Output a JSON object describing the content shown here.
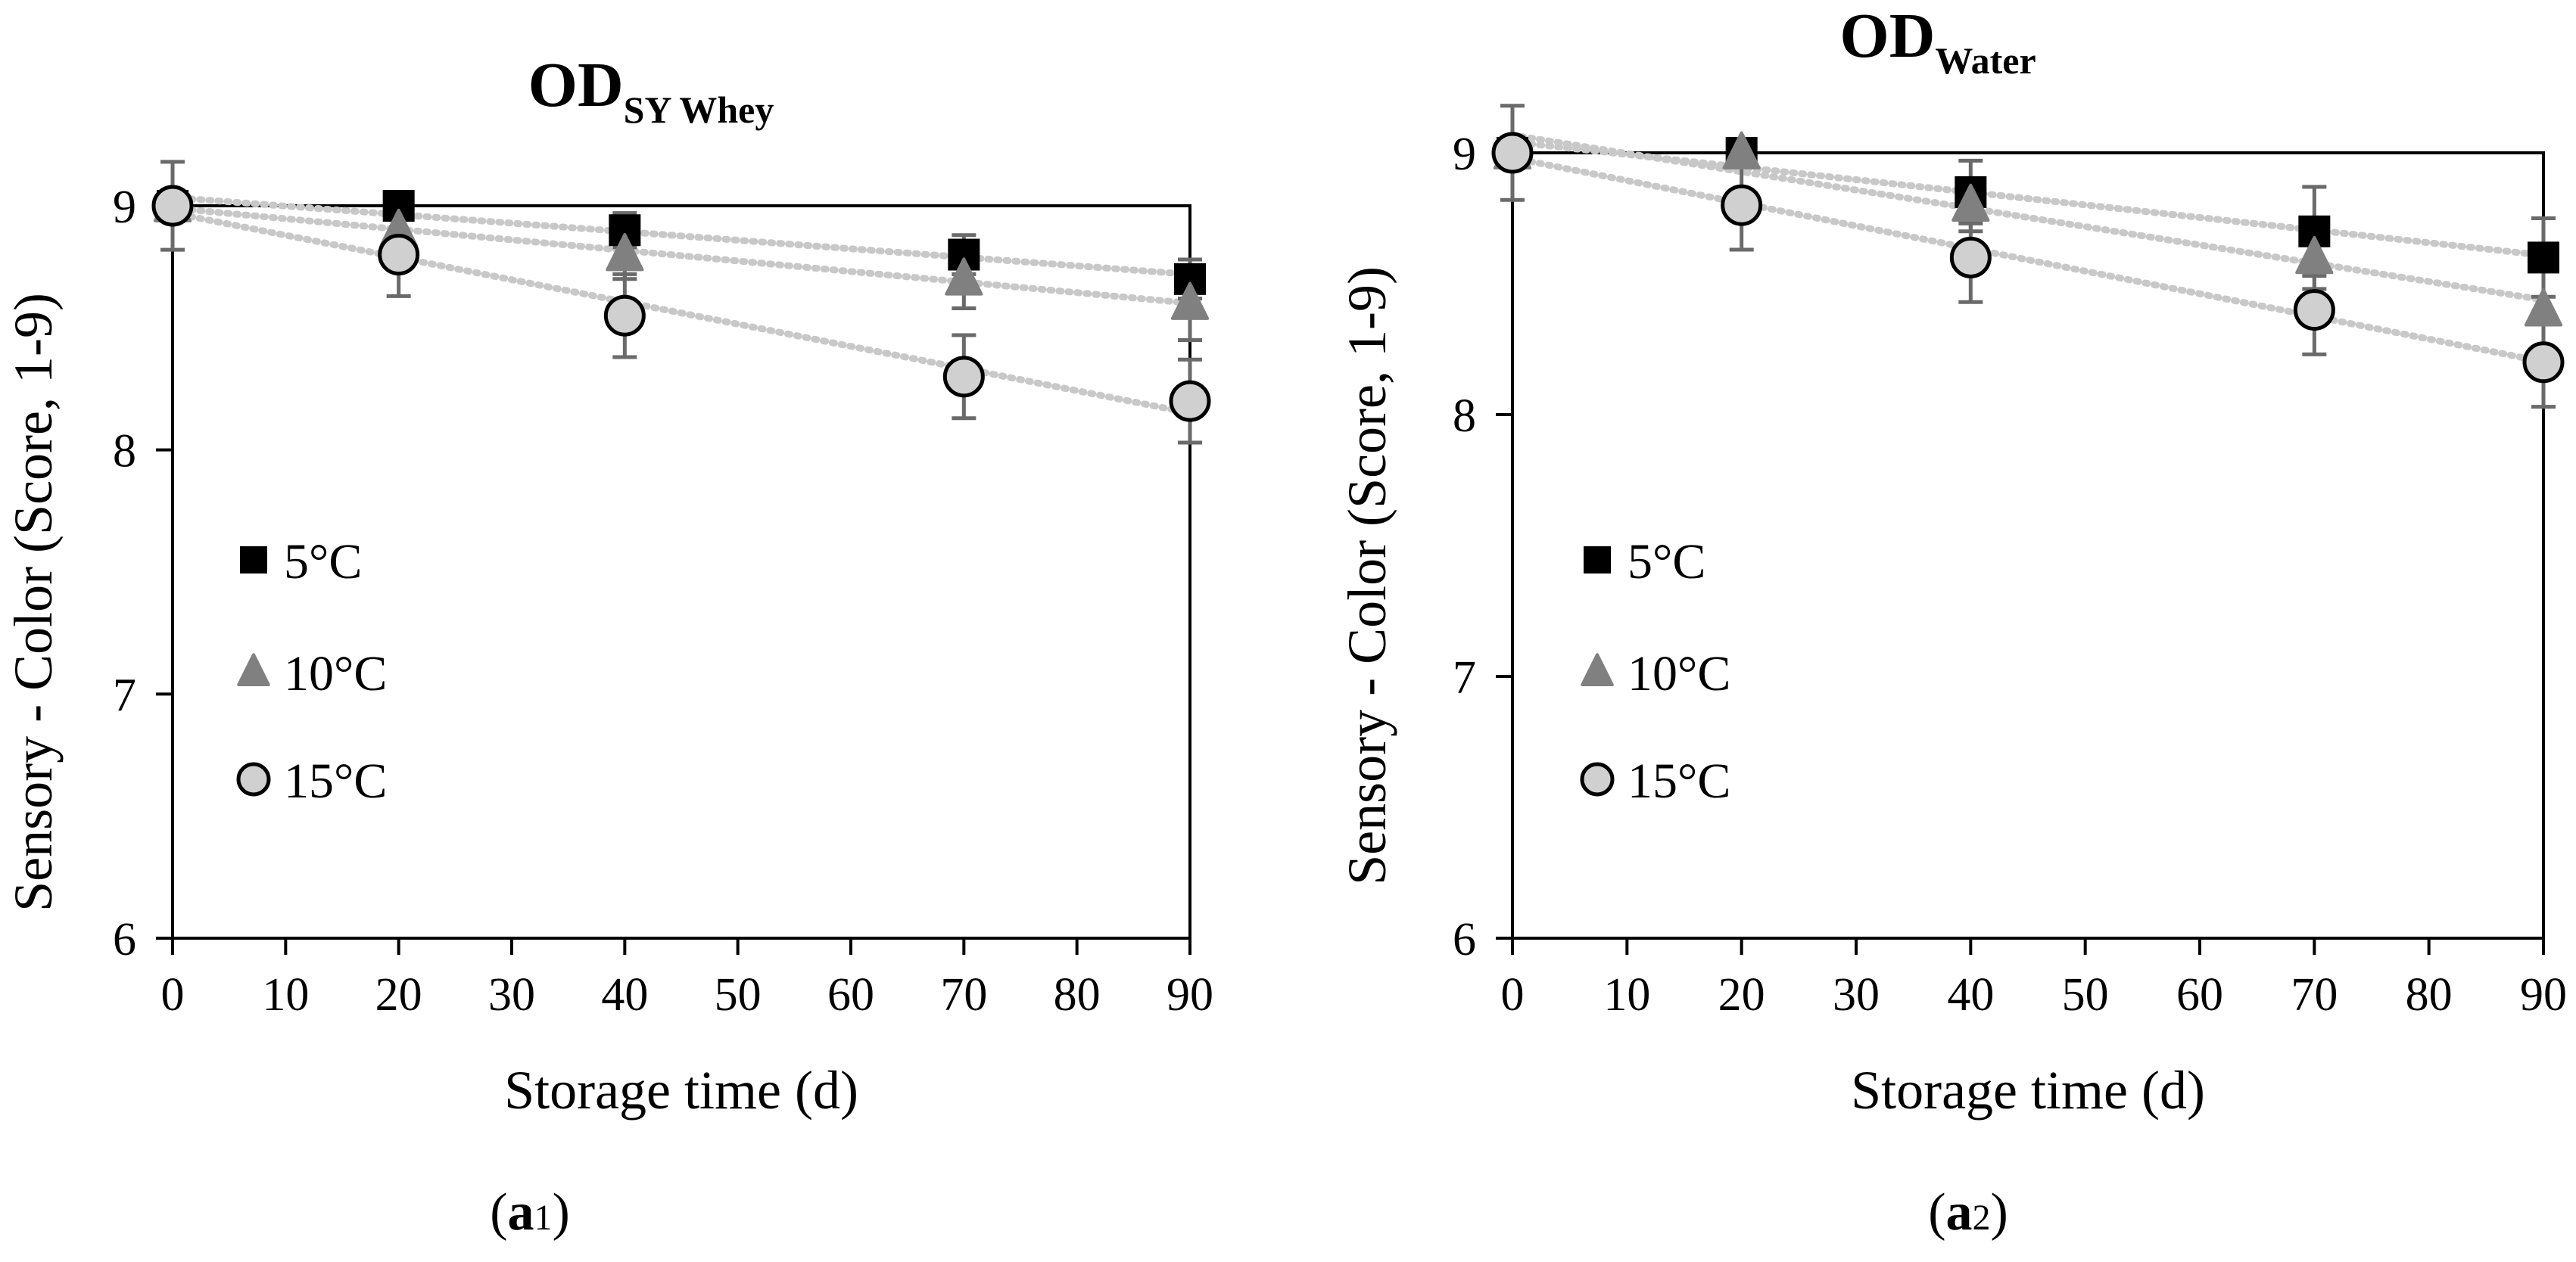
{
  "chart_data": [
    {
      "type": "scatter",
      "title": "OD",
      "title_subscript": "SY Whey",
      "xlabel": "Storage time (d)",
      "ylabel": "Sensory - Color (Score, 1-9)",
      "xlim": [
        0,
        90
      ],
      "ylim": [
        6,
        9
      ],
      "xticks": [
        "0",
        "10",
        "20",
        "30",
        "40",
        "50",
        "60",
        "70",
        "80",
        "90"
      ],
      "yticks": [
        "6",
        "7",
        "8",
        "9"
      ],
      "panel_label": "a",
      "panel_label_sub": "1",
      "legend_position": "left",
      "trendlines": "linear, dotted",
      "series": [
        {
          "name": "5°C",
          "marker": "square",
          "color": "#000000",
          "x": [
            0,
            20,
            40,
            70,
            90
          ],
          "y": [
            9.0,
            9.0,
            8.9,
            8.8,
            8.7
          ],
          "error": [
            0.0,
            0.0,
            0.07,
            0.08,
            0.08
          ]
        },
        {
          "name": "10°C",
          "marker": "triangle",
          "color": "#808080",
          "x": [
            0,
            20,
            40,
            70,
            90
          ],
          "y": [
            9.0,
            8.9,
            8.8,
            8.7,
            8.6
          ],
          "error": [
            0.0,
            0.07,
            0.1,
            0.12,
            0.15
          ]
        },
        {
          "name": "15°C",
          "marker": "circle",
          "color": "#d0d0d0",
          "x": [
            0,
            20,
            40,
            70,
            90
          ],
          "y": [
            9.0,
            8.8,
            8.55,
            8.3,
            8.2
          ],
          "error": [
            0.18,
            0.17,
            0.17,
            0.17,
            0.17
          ]
        }
      ]
    },
    {
      "type": "scatter",
      "title": "OD",
      "title_subscript": "Water",
      "xlabel": "Storage time (d)",
      "ylabel": "Sensory - Color (Score, 1-9)",
      "xlim": [
        0,
        90
      ],
      "ylim": [
        6,
        9
      ],
      "xticks": [
        "0",
        "10",
        "20",
        "30",
        "40",
        "50",
        "60",
        "70",
        "80",
        "90"
      ],
      "yticks": [
        "6",
        "7",
        "8",
        "9"
      ],
      "panel_label": "a",
      "panel_label_sub": "2",
      "legend_position": "left",
      "trendlines": "linear, dotted",
      "series": [
        {
          "name": "5°C",
          "marker": "square",
          "color": "#000000",
          "x": [
            0,
            20,
            40,
            70,
            90
          ],
          "y": [
            9.0,
            9.0,
            8.85,
            8.7,
            8.6
          ],
          "error": [
            0.0,
            0.0,
            0.12,
            0.17,
            0.15
          ]
        },
        {
          "name": "10°C",
          "marker": "triangle",
          "color": "#808080",
          "x": [
            0,
            20,
            40,
            70,
            90
          ],
          "y": [
            9.0,
            9.0,
            8.8,
            8.6,
            8.4
          ],
          "error": [
            0.0,
            0.05,
            0.1,
            0.12,
            0.15
          ]
        },
        {
          "name": "15°C",
          "marker": "circle",
          "color": "#d0d0d0",
          "x": [
            0,
            20,
            40,
            70,
            90
          ],
          "y": [
            9.0,
            8.8,
            8.6,
            8.4,
            8.2
          ],
          "error": [
            0.18,
            0.17,
            0.17,
            0.17,
            0.17
          ]
        }
      ]
    }
  ]
}
